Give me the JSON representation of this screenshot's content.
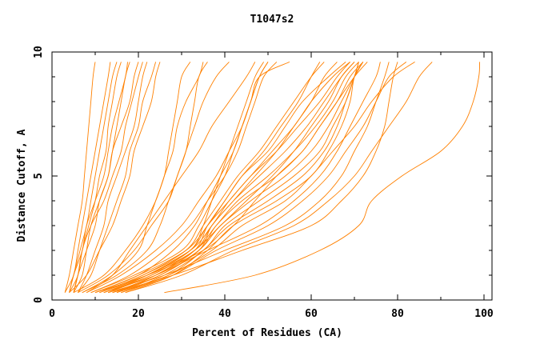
{
  "chart_data": {
    "type": "line",
    "title": "T1047s2",
    "xlabel": "Percent of Residues (CA)",
    "ylabel": "Distance Cutoff, A",
    "xlim": [
      0,
      100
    ],
    "ylim": [
      0,
      10
    ],
    "x_ticks": [
      "0",
      "20",
      "40",
      "60",
      "80",
      "100"
    ],
    "y_ticks": [
      "0",
      "5",
      "10"
    ],
    "grid": false,
    "line_color": "#ff8000",
    "y_levels": [
      0.3,
      1,
      2,
      3,
      4,
      5,
      6,
      7,
      8,
      9,
      9.6
    ],
    "series_x": [
      [
        3,
        4,
        5,
        6,
        7,
        7.5,
        8,
        8.5,
        9,
        9.5,
        10
      ],
      [
        3,
        5,
        6,
        7,
        8,
        9,
        10,
        11,
        12,
        13,
        13.5
      ],
      [
        4,
        5,
        6.5,
        8,
        9,
        10,
        11,
        12,
        13,
        14,
        15
      ],
      [
        4,
        6,
        7,
        8.5,
        10,
        11,
        12.5,
        13,
        14,
        15,
        16
      ],
      [
        4,
        5,
        7,
        8,
        10,
        12,
        13,
        14,
        15.5,
        17,
        17.5
      ],
      [
        5,
        6,
        8,
        10,
        11,
        13,
        14,
        15,
        16,
        17,
        18
      ],
      [
        5,
        7,
        8,
        9,
        11,
        13,
        14,
        16,
        18,
        19,
        20
      ],
      [
        5,
        6,
        7,
        9,
        12,
        14,
        16,
        17,
        18.5,
        20,
        21
      ],
      [
        6,
        8,
        10,
        12,
        13,
        15,
        17,
        19,
        20,
        21,
        22
      ],
      [
        6,
        9,
        11,
        13,
        15,
        17,
        18,
        20,
        21,
        23,
        24
      ],
      [
        4,
        8,
        11,
        14,
        16,
        18,
        19,
        21,
        23,
        24,
        25
      ],
      [
        5,
        12,
        17,
        21,
        24,
        26,
        28,
        29,
        31,
        34,
        35
      ],
      [
        6,
        13,
        19,
        23,
        27,
        29,
        31,
        32,
        33,
        34,
        36
      ],
      [
        7,
        14,
        20,
        22,
        24,
        26,
        27,
        28,
        29,
        30,
        32
      ],
      [
        7,
        15,
        22,
        25,
        27,
        29,
        31,
        33,
        35,
        38,
        41
      ],
      [
        8,
        14,
        18,
        22,
        26,
        30,
        34,
        37,
        41,
        45,
        47
      ],
      [
        8,
        16,
        24,
        30,
        34,
        38,
        41,
        44,
        46,
        48,
        50
      ],
      [
        9,
        18,
        26,
        32,
        36,
        40,
        43,
        45,
        47,
        49,
        52
      ],
      [
        10,
        20,
        28,
        33,
        36,
        39,
        42,
        44,
        46,
        48,
        55
      ],
      [
        10,
        20,
        31,
        36,
        40,
        44,
        50,
        54,
        58,
        64,
        68
      ],
      [
        11,
        21,
        32,
        37,
        41,
        46,
        51,
        56,
        60,
        65,
        69
      ],
      [
        12,
        22,
        33,
        37,
        42,
        48,
        54,
        59,
        63,
        67,
        70
      ],
      [
        13,
        23,
        33,
        38,
        43,
        50,
        56,
        61,
        65,
        68,
        71
      ],
      [
        14,
        24,
        34,
        38,
        44,
        52,
        58,
        62,
        66,
        69,
        72
      ],
      [
        15,
        25,
        34,
        39,
        46,
        54,
        60,
        64,
        67,
        70,
        72
      ],
      [
        16,
        26,
        35,
        40,
        48,
        56,
        62,
        65,
        68,
        70,
        71
      ],
      [
        12,
        23,
        33,
        39,
        45,
        51,
        56,
        60,
        64,
        67,
        70
      ],
      [
        13,
        22,
        32,
        36,
        41,
        46,
        52,
        57,
        62,
        66,
        69
      ],
      [
        11,
        21,
        31,
        35,
        39,
        43,
        48,
        52,
        56,
        60,
        63
      ],
      [
        14,
        25,
        34,
        37,
        42,
        47,
        52,
        56,
        60,
        63,
        66
      ],
      [
        15,
        24,
        33,
        36,
        40,
        44,
        49,
        53,
        57,
        60,
        62
      ],
      [
        16,
        27,
        35,
        41,
        50,
        58,
        63,
        66,
        68,
        70,
        71
      ],
      [
        17,
        28,
        36,
        42,
        52,
        60,
        64,
        67,
        69,
        70,
        72
      ],
      [
        12,
        24,
        36,
        48,
        56,
        62,
        66,
        69,
        72,
        75,
        76
      ],
      [
        13,
        26,
        40,
        54,
        62,
        67,
        70,
        73,
        75,
        77,
        78
      ],
      [
        14,
        28,
        44,
        60,
        67,
        72,
        75,
        77,
        78,
        79,
        80
      ],
      [
        16,
        28,
        38,
        50,
        58,
        64,
        68,
        72,
        75,
        78,
        82
      ],
      [
        15,
        27,
        37,
        44,
        54,
        60,
        65,
        70,
        74,
        79,
        84
      ],
      [
        17,
        30,
        42,
        56,
        64,
        70,
        74,
        78,
        82,
        85,
        88
      ],
      [
        10,
        22,
        35,
        42,
        47,
        52,
        58,
        62,
        66,
        70,
        73
      ],
      [
        9,
        19,
        30,
        34,
        37,
        40,
        42,
        44,
        46,
        48,
        50
      ],
      [
        11,
        22,
        32,
        35,
        37,
        39,
        41,
        43,
        45,
        47,
        49
      ],
      [
        26,
        47,
        62,
        71,
        74,
        81,
        90,
        95,
        97.5,
        98.8,
        99
      ]
    ]
  }
}
